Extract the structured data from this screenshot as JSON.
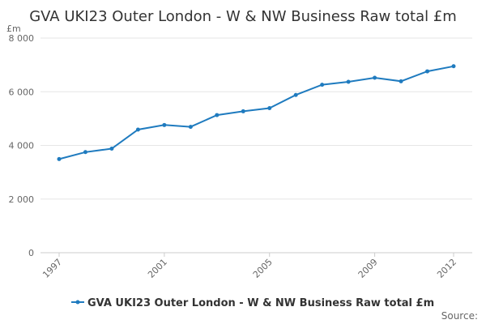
{
  "chart_data": {
    "type": "line",
    "title": "GVA UKI23 Outer London - W & NW Business Raw total £m",
    "unit_label": "£m",
    "xlabel": "",
    "ylabel": "",
    "x": [
      1997,
      1998,
      1999,
      2000,
      2001,
      2002,
      2003,
      2004,
      2005,
      2006,
      2007,
      2008,
      2009,
      2010,
      2011,
      2012
    ],
    "series": [
      {
        "name": "GVA UKI23 Outer London - W & NW Business Raw total £m",
        "values": [
          3490,
          3750,
          3880,
          4590,
          4760,
          4690,
          5130,
          5270,
          5390,
          5880,
          6260,
          6370,
          6520,
          6390,
          6760,
          6950
        ]
      }
    ],
    "ylim": [
      0,
      8000
    ],
    "yticks": [
      0,
      2000,
      4000,
      6000,
      8000
    ],
    "ytick_labels": [
      "0",
      "2 000",
      "4 000",
      "6 000",
      "8 000"
    ],
    "xticks": [
      1997,
      2001,
      2005,
      2009,
      2012
    ],
    "xtick_labels": [
      "1997",
      "2001",
      "2005",
      "2009",
      "2012"
    ],
    "grid": true,
    "legend_position": "bottom",
    "series_color": "#1f7bbf",
    "source_label": "Source:"
  }
}
